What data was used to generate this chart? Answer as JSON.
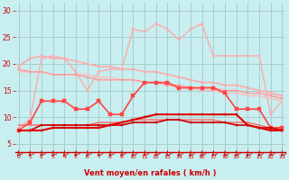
{
  "bg_color": "#c8eef0",
  "grid_color": "#aacccc",
  "x": [
    0,
    1,
    2,
    3,
    4,
    5,
    6,
    7,
    8,
    9,
    10,
    11,
    12,
    13,
    14,
    15,
    16,
    17,
    18,
    19,
    20,
    21,
    22,
    23
  ],
  "series": [
    {
      "y": [
        8.0,
        9.5,
        21.0,
        21.5,
        21.0,
        18.5,
        15.0,
        18.5,
        19.0,
        19.0,
        26.5,
        26.0,
        27.5,
        26.5,
        24.5,
        26.5,
        27.5,
        21.5,
        21.5,
        21.5,
        21.5,
        21.5,
        10.5,
        13.0
      ],
      "color": "#ffaaaa",
      "lw": 1.0,
      "marker": "s",
      "ms": 2.0,
      "zorder": 2
    },
    {
      "y": [
        19.5,
        21.0,
        21.5,
        21.0,
        21.0,
        20.5,
        20.0,
        19.5,
        19.5,
        19.0,
        19.0,
        18.5,
        18.5,
        18.0,
        17.5,
        17.0,
        16.5,
        16.5,
        16.0,
        16.0,
        15.5,
        15.0,
        14.5,
        14.0
      ],
      "color": "#ffaaaa",
      "lw": 1.2,
      "marker": "s",
      "ms": 2.0,
      "zorder": 3
    },
    {
      "y": [
        18.5,
        18.5,
        18.5,
        18.0,
        18.0,
        18.0,
        18.0,
        17.5,
        17.5,
        17.0,
        17.0,
        16.5,
        16.5,
        16.0,
        15.5,
        15.5,
        15.0,
        15.0,
        14.5,
        14.5,
        14.0,
        14.0,
        13.5,
        13.0
      ],
      "color": "#ffbbbb",
      "lw": 1.0,
      "marker": null,
      "ms": 0,
      "zorder": 2
    },
    {
      "y": [
        19.0,
        18.5,
        18.5,
        18.0,
        18.0,
        18.0,
        17.5,
        17.0,
        17.0,
        17.0,
        17.0,
        16.5,
        16.5,
        16.0,
        16.0,
        15.5,
        15.5,
        15.5,
        15.0,
        15.0,
        14.5,
        14.5,
        14.0,
        13.5
      ],
      "color": "#ff9999",
      "lw": 1.0,
      "marker": "s",
      "ms": 2.0,
      "zorder": 3
    },
    {
      "y": [
        7.5,
        9.0,
        13.0,
        13.0,
        13.0,
        11.5,
        11.5,
        13.0,
        10.5,
        10.5,
        14.0,
        16.5,
        16.5,
        16.5,
        15.5,
        15.5,
        15.5,
        15.5,
        14.5,
        11.5,
        11.5,
        11.5,
        8.0,
        8.0
      ],
      "color": "#ff4444",
      "lw": 1.2,
      "marker": "s",
      "ms": 2.5,
      "zorder": 5
    },
    {
      "y": [
        7.5,
        7.5,
        8.5,
        8.5,
        8.5,
        8.5,
        8.5,
        8.5,
        8.5,
        8.5,
        9.0,
        9.0,
        9.0,
        9.5,
        9.5,
        9.0,
        9.0,
        9.0,
        9.0,
        8.5,
        8.5,
        8.0,
        8.0,
        7.5
      ],
      "color": "#cc0000",
      "lw": 1.2,
      "marker": "s",
      "ms": 2.0,
      "zorder": 6
    },
    {
      "y": [
        8.5,
        8.5,
        8.5,
        8.5,
        8.5,
        8.5,
        8.5,
        9.0,
        9.0,
        9.0,
        9.5,
        9.5,
        9.5,
        9.5,
        9.5,
        9.5,
        9.5,
        9.5,
        9.0,
        9.0,
        9.0,
        8.5,
        8.0,
        8.0
      ],
      "color": "#ff6666",
      "lw": 1.0,
      "marker": null,
      "ms": 0,
      "zorder": 4
    },
    {
      "y": [
        7.5,
        7.5,
        7.5,
        8.0,
        8.0,
        8.0,
        8.0,
        8.0,
        8.5,
        9.0,
        9.5,
        10.0,
        10.5,
        10.5,
        10.5,
        10.5,
        10.5,
        10.5,
        10.5,
        10.5,
        8.5,
        8.0,
        7.5,
        7.5
      ],
      "color": "#dd0000",
      "lw": 1.5,
      "marker": "s",
      "ms": 2.0,
      "zorder": 7
    }
  ],
  "xlabel": "Vent moyen/en rafales ( km/h )",
  "yticks": [
    5,
    10,
    15,
    20,
    25,
    30
  ],
  "ylim": [
    3.5,
    31.5
  ],
  "xlim": [
    -0.3,
    23.3
  ],
  "tick_color": "#cc0000",
  "xlabel_color": "#cc0000"
}
